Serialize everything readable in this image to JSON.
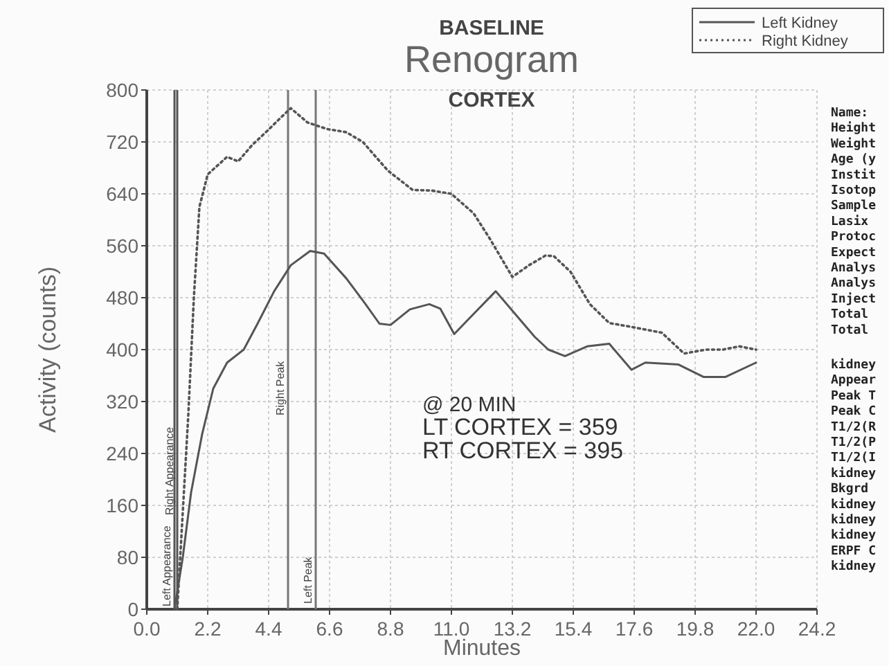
{
  "chart_data": {
    "type": "line",
    "title": "Renogram",
    "subtitle": "CORTEX",
    "xlabel": "Minutes",
    "ylabel": "Activity (counts)",
    "xlim": [
      0,
      24.2
    ],
    "ylim": [
      0,
      800
    ],
    "xticks": [
      {
        "value": 0,
        "label": "0.0"
      },
      2.2,
      4.4,
      6.6,
      8.8,
      {
        "value": 11,
        "label": "11.0"
      },
      13.2,
      15.4,
      17.6,
      19.8,
      {
        "value": 22,
        "label": "22.0"
      },
      24.2
    ],
    "yticks": [
      0,
      80,
      160,
      240,
      320,
      400,
      480,
      560,
      640,
      720,
      800
    ],
    "grid": true,
    "legend": "top right",
    "marker": "none",
    "series": [
      {
        "name": "Left Kidney",
        "color": "#555555",
        "line_style": "solid",
        "x": [
          1.0,
          1.3,
          1.6,
          2.0,
          2.4,
          2.9,
          3.5,
          4.0,
          4.6,
          5.2,
          5.9,
          6.4,
          7.2,
          7.9,
          8.4,
          8.8,
          9.5,
          10.2,
          10.6,
          11.1,
          11.8,
          12.6,
          13.2,
          14.0,
          14.5,
          15.1,
          15.9,
          16.7,
          17.5,
          18.0,
          19.2,
          20.1,
          20.9,
          22.0
        ],
        "values": [
          0,
          80,
          180,
          270,
          340,
          380,
          400,
          440,
          490,
          530,
          552,
          548,
          510,
          470,
          440,
          438,
          462,
          470,
          463,
          424,
          455,
          490,
          460,
          420,
          400,
          390,
          405,
          409,
          369,
          380,
          377,
          358,
          358,
          380
        ]
      },
      {
        "name": "Right Kidney",
        "color": "#555555",
        "line_style": "dotted",
        "x": [
          1.1,
          1.3,
          1.5,
          1.7,
          1.9,
          2.2,
          2.9,
          3.3,
          3.8,
          4.3,
          4.9,
          5.2,
          5.8,
          6.5,
          7.2,
          7.8,
          8.7,
          9.6,
          10.3,
          11.0,
          11.8,
          12.4,
          13.2,
          13.8,
          14.4,
          14.7,
          15.3,
          16.0,
          16.7,
          17.5,
          18.6,
          19.4,
          20.2,
          20.8,
          21.4,
          22.0
        ],
        "values": [
          0,
          150,
          300,
          480,
          620,
          670,
          697,
          690,
          715,
          735,
          760,
          772,
          750,
          740,
          735,
          720,
          676,
          646,
          645,
          640,
          610,
          570,
          512,
          530,
          545,
          544,
          520,
          470,
          441,
          435,
          426,
          394,
          400,
          400,
          405,
          400
        ]
      }
    ],
    "ref_lines": [
      {
        "axis": "x",
        "value": 1.0,
        "label": "Left Appearance",
        "color": "#555555"
      },
      {
        "axis": "x",
        "value": 1.1,
        "label": "Right Appearance",
        "color": "#555555"
      },
      {
        "axis": "x",
        "value": 5.1,
        "label": "Right Peak",
        "color": "#777777"
      },
      {
        "axis": "x",
        "value": 6.1,
        "label": "Left Peak",
        "color": "#777777"
      }
    ],
    "annotations": [
      "BASELINE",
      "@ 20 MIN",
      "LT CORTEX = 359",
      "RT CORTEX = 395",
      "Name:",
      "Height",
      "Weight",
      "Age (y",
      "Instit",
      "Isotop",
      "Sample",
      "Lasix",
      "Protoc",
      "Expect",
      "Analys",
      "Analys",
      "Inject",
      "Total",
      "Total",
      "kidney",
      "Appear",
      "Peak T",
      "Peak C",
      "T1/2(R",
      "T1/2(P",
      "T1/2(I",
      "kidney",
      "Bkgrd",
      "kidney",
      "kidney",
      "kidney",
      "ERPF C",
      "kidney"
    ]
  }
}
